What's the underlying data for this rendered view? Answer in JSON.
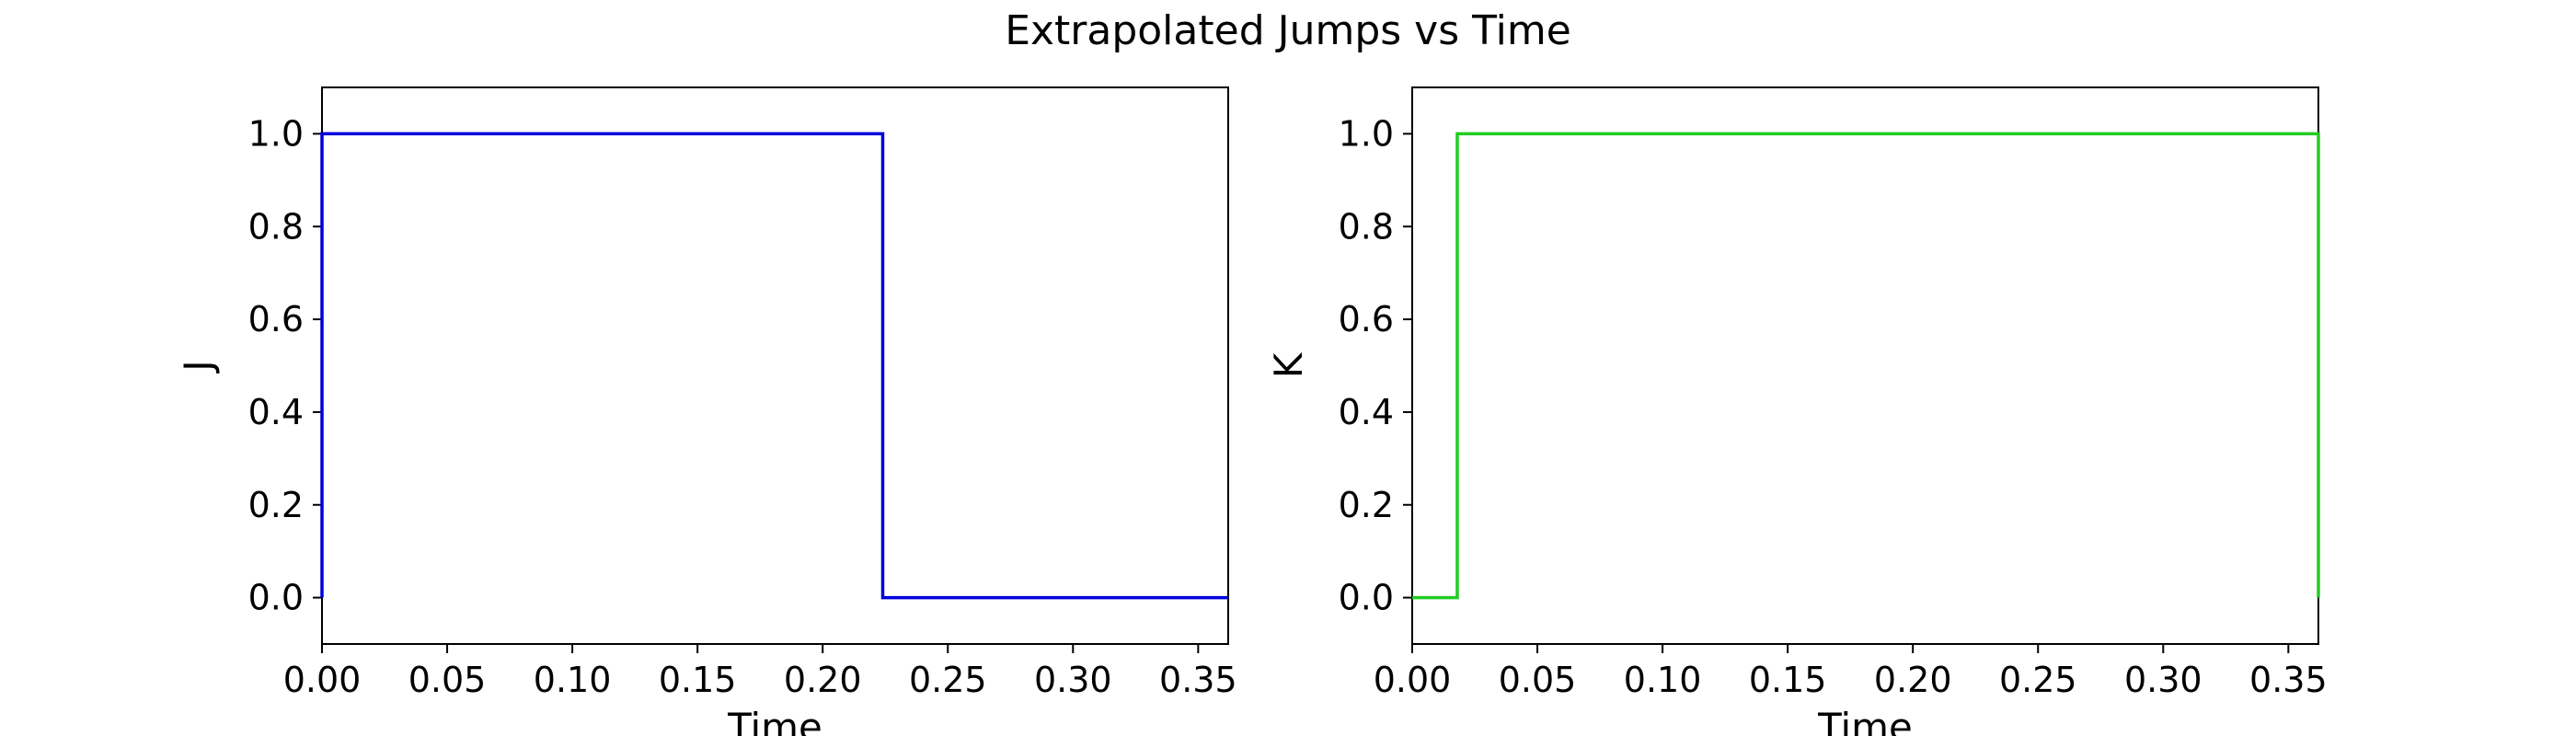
{
  "figure": {
    "title": "Extrapolated Jumps vs Time"
  },
  "chart_data": [
    {
      "type": "line",
      "style": "step",
      "title": "",
      "xlabel": "Time",
      "ylabel": "J",
      "xlim": [
        0.0,
        0.362
      ],
      "ylim": [
        -0.1,
        1.1
      ],
      "xticks": [
        "0.00",
        "0.05",
        "0.10",
        "0.15",
        "0.20",
        "0.25",
        "0.30",
        "0.35"
      ],
      "yticks": [
        "0.0",
        "0.2",
        "0.4",
        "0.6",
        "0.8",
        "1.0"
      ],
      "grid": false,
      "series": [
        {
          "color": "#0000dd",
          "x": [
            0.0,
            0.0,
            0.224,
            0.224,
            0.362
          ],
          "y": [
            0.0,
            1.0,
            1.0,
            0.0,
            0.0
          ]
        }
      ]
    },
    {
      "type": "line",
      "style": "step",
      "title": "",
      "xlabel": "Time",
      "ylabel": "K",
      "xlim": [
        0.0,
        0.362
      ],
      "ylim": [
        -0.1,
        1.1
      ],
      "xticks": [
        "0.00",
        "0.05",
        "0.10",
        "0.15",
        "0.20",
        "0.25",
        "0.30",
        "0.35"
      ],
      "yticks": [
        "0.0",
        "0.2",
        "0.4",
        "0.6",
        "0.8",
        "1.0"
      ],
      "grid": false,
      "series": [
        {
          "color": "#22cc22",
          "x": [
            0.0,
            0.018,
            0.018,
            0.362,
            0.362
          ],
          "y": [
            0.0,
            0.0,
            1.0,
            1.0,
            0.0
          ]
        }
      ]
    }
  ]
}
